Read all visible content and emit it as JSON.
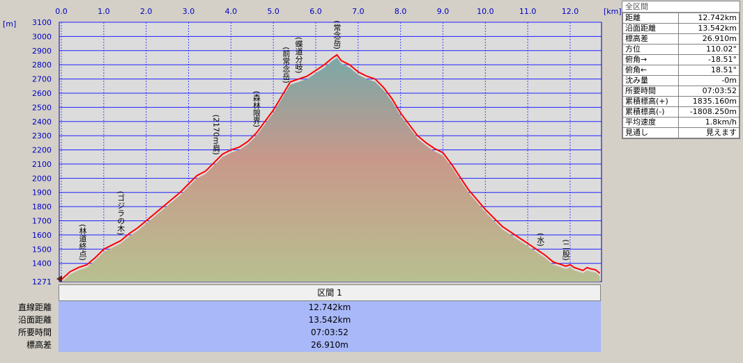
{
  "chart_data": {
    "type": "area",
    "x_unit": "[km]",
    "y_unit": "[m]",
    "x_ticks": [
      "0.0",
      "1.0",
      "2.0",
      "3.0",
      "4.0",
      "5.0",
      "6.0",
      "7.0",
      "8.0",
      "9.0",
      "10.0",
      "11.0",
      "12.0"
    ],
    "y_ticks": [
      "1271",
      "1400",
      "1500",
      "1600",
      "1700",
      "1800",
      "1900",
      "2000",
      "2100",
      "2200",
      "2300",
      "2400",
      "2500",
      "2600",
      "2700",
      "2800",
      "2900",
      "3000",
      "3100"
    ],
    "xlim": [
      -0.05,
      12.74
    ],
    "ylim": [
      1271,
      3100
    ],
    "grid": true,
    "series": [
      {
        "color": "#ff0000",
        "x": [
          0.0,
          0.2,
          0.4,
          0.6,
          0.8,
          1.0,
          1.2,
          1.4,
          1.6,
          1.8,
          2.0,
          2.2,
          2.4,
          2.6,
          2.8,
          3.0,
          3.2,
          3.4,
          3.6,
          3.8,
          4.0,
          4.2,
          4.4,
          4.6,
          4.8,
          5.0,
          5.2,
          5.4,
          5.6,
          5.8,
          6.0,
          6.2,
          6.4,
          6.5,
          6.6,
          6.8,
          7.0,
          7.2,
          7.4,
          7.6,
          7.8,
          8.0,
          8.2,
          8.4,
          8.6,
          8.8,
          9.0,
          9.2,
          9.4,
          9.6,
          9.8,
          10.0,
          10.2,
          10.4,
          10.6,
          10.8,
          11.0,
          11.2,
          11.4,
          11.6,
          11.8,
          11.9,
          12.0,
          12.1,
          12.2,
          12.3,
          12.4,
          12.5,
          12.6,
          12.7
        ],
        "y": [
          1285,
          1340,
          1370,
          1390,
          1440,
          1500,
          1530,
          1560,
          1610,
          1650,
          1700,
          1750,
          1800,
          1850,
          1900,
          1960,
          2020,
          2050,
          2110,
          2170,
          2200,
          2220,
          2260,
          2320,
          2400,
          2480,
          2580,
          2680,
          2700,
          2720,
          2760,
          2800,
          2850,
          2870,
          2830,
          2800,
          2750,
          2720,
          2700,
          2640,
          2560,
          2460,
          2380,
          2300,
          2250,
          2210,
          2180,
          2100,
          2010,
          1920,
          1850,
          1780,
          1720,
          1660,
          1620,
          1580,
          1540,
          1500,
          1460,
          1410,
          1390,
          1380,
          1390,
          1370,
          1360,
          1350,
          1370,
          1360,
          1355,
          1330
        ]
      }
    ],
    "annotations": [
      {
        "text": "(林道終点)",
        "x": 0.5
      },
      {
        "text": "(ゴジラの木)",
        "x": 1.4
      },
      {
        "text": "(2170m肩)",
        "x": 3.65
      },
      {
        "text": "(森林限界)",
        "x": 4.6
      },
      {
        "text": "(前常念岳)",
        "x": 5.3
      },
      {
        "text": "(蝶道分岐)",
        "x": 5.6
      },
      {
        "text": "(常念岳)",
        "x": 6.5
      },
      {
        "text": "(水)",
        "x": 11.3
      },
      {
        "text": "(二股)",
        "x": 11.9
      }
    ]
  },
  "summary": {
    "header": "全区間",
    "rows": [
      {
        "label": "距離",
        "value": "12.742km"
      },
      {
        "label": "沿面距離",
        "value": "13.542km"
      },
      {
        "label": "標高差",
        "value": "26.910m"
      },
      {
        "label": "方位",
        "value": "110.02°"
      },
      {
        "label": "俯角→",
        "value": "-18.51°"
      },
      {
        "label": "俯角←",
        "value": "18.51°"
      },
      {
        "label": "沈み量",
        "value": "-0m"
      },
      {
        "label": "所要時間",
        "value": "07:03:52"
      },
      {
        "label": "累積標高(+)",
        "value": "1835.160m"
      },
      {
        "label": "累積標高(-)",
        "value": "-1808.250m"
      },
      {
        "label": "平均速度",
        "value": "1.8km/h"
      },
      {
        "label": "見通し",
        "value": "見えます"
      }
    ]
  },
  "section": {
    "header": "区間 1",
    "rows": [
      {
        "label": "直線距離",
        "value": "12.742km"
      },
      {
        "label": "沿面距離",
        "value": "13.542km"
      },
      {
        "label": "所要時間",
        "value": "07:03:52"
      },
      {
        "label": "標高差",
        "value": "26.910m"
      }
    ]
  }
}
